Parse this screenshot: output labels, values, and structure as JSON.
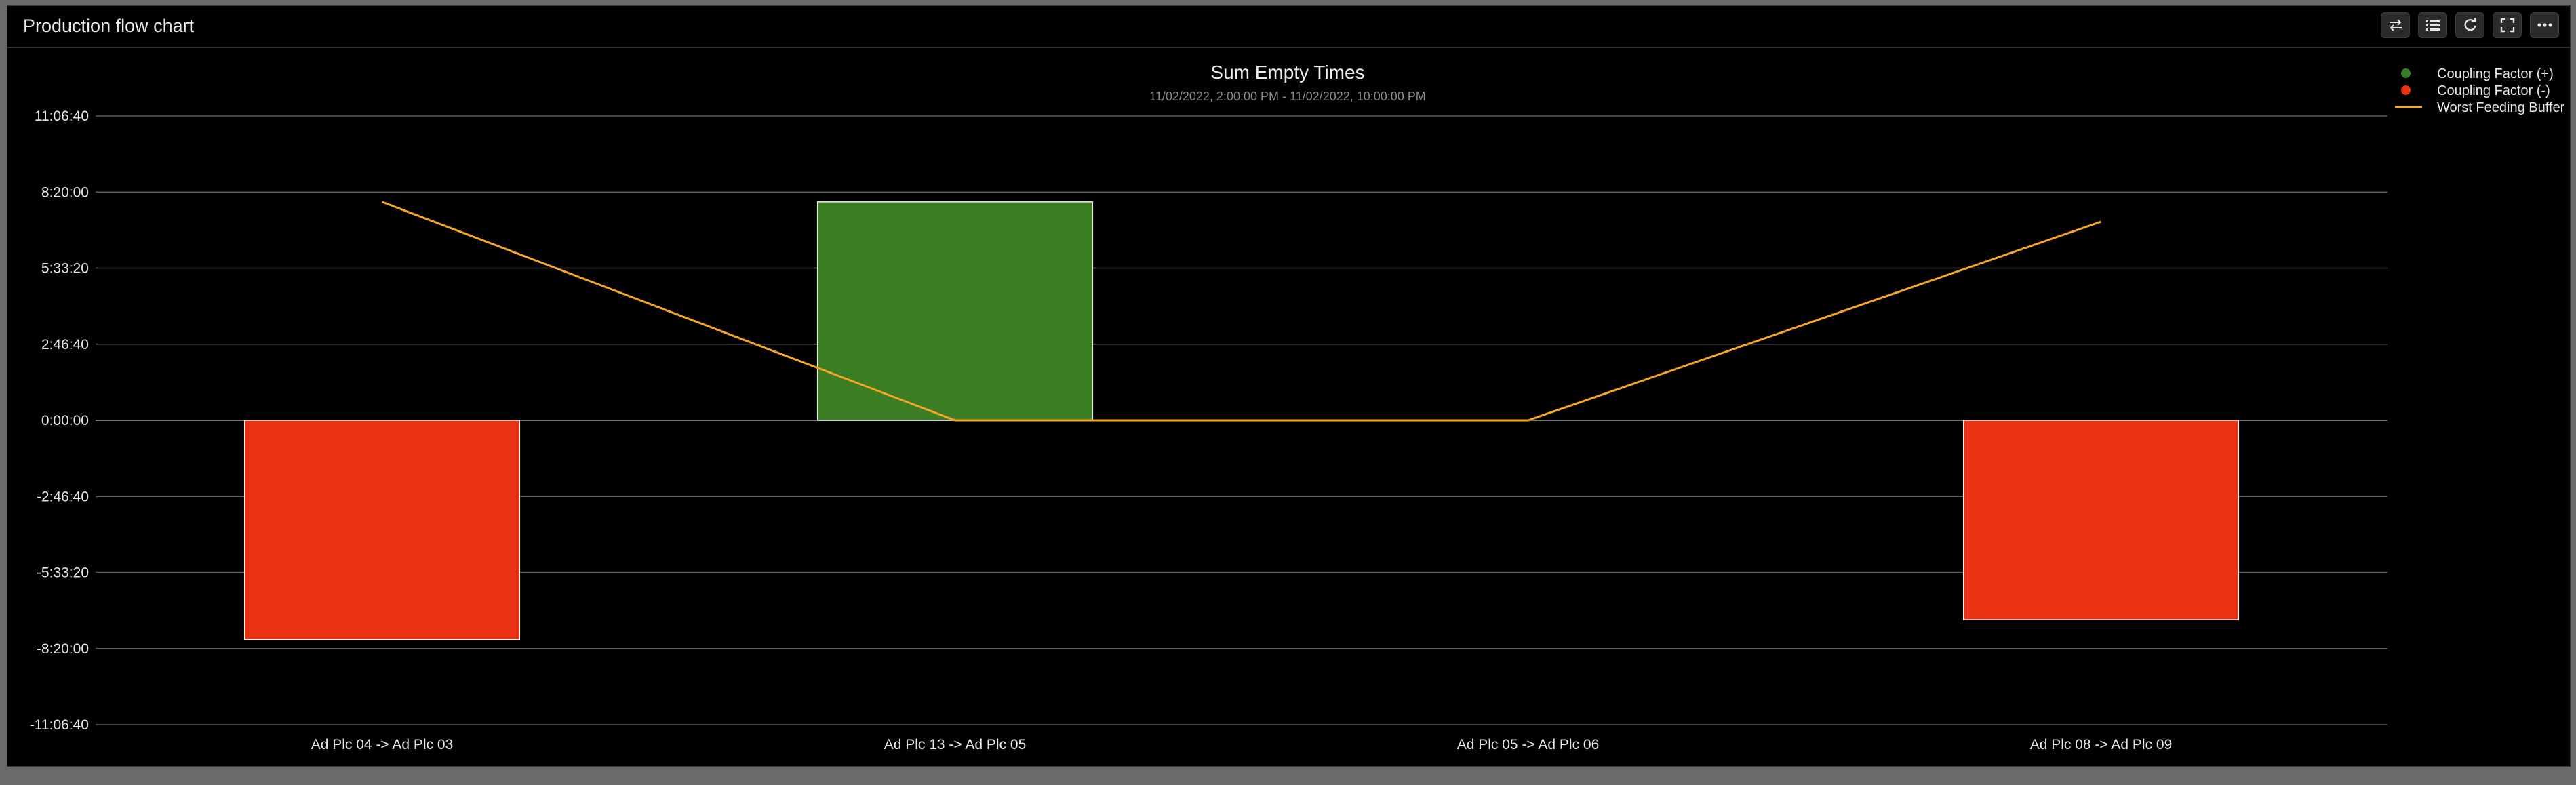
{
  "panel": {
    "title": "Production flow chart",
    "toolbar": [
      {
        "name": "swap-icon"
      },
      {
        "name": "list-icon"
      },
      {
        "name": "refresh-icon"
      },
      {
        "name": "fullscreen-icon"
      },
      {
        "name": "more-icon"
      }
    ]
  },
  "chart_data": {
    "type": "bar",
    "title": "Sum Empty Times",
    "subtitle": "11/02/2022, 2:00:00 PM - 11/02/2022, 10:00:00 PM",
    "categories": [
      "Ad Plc 04 -> Ad Plc 03",
      "Ad Plc 13 -> Ad Plc 05",
      "Ad Plc 05 -> Ad Plc 06",
      "Ad Plc 08 -> Ad Plc 09"
    ],
    "y_ticks": [
      {
        "value": 40000,
        "label": "11:06:40"
      },
      {
        "value": 30000,
        "label": "8:20:00"
      },
      {
        "value": 20000,
        "label": "5:33:20"
      },
      {
        "value": 10000,
        "label": "2:46:40"
      },
      {
        "value": 0,
        "label": "0:00:00"
      },
      {
        "value": -10000,
        "label": "-2:46:40"
      },
      {
        "value": -20000,
        "label": "-5:33:20"
      },
      {
        "value": -30000,
        "label": "-8:20:00"
      },
      {
        "value": -40000,
        "label": "-11:06:40"
      }
    ],
    "ylim": [
      -40000,
      40000
    ],
    "grid": true,
    "legend_position": "top-right",
    "series": [
      {
        "name": "Coupling Factor (+)",
        "kind": "bar",
        "color": "#3b7d22",
        "values": [
          null,
          28700,
          null,
          null
        ]
      },
      {
        "name": "Coupling Factor (-)",
        "kind": "bar",
        "color": "#e83213",
        "values": [
          -28800,
          null,
          null,
          -26200
        ]
      },
      {
        "name": "Worst Feeding Buffer",
        "kind": "line",
        "color": "#f5a623",
        "values": [
          28700,
          0,
          0,
          26100
        ]
      }
    ]
  }
}
